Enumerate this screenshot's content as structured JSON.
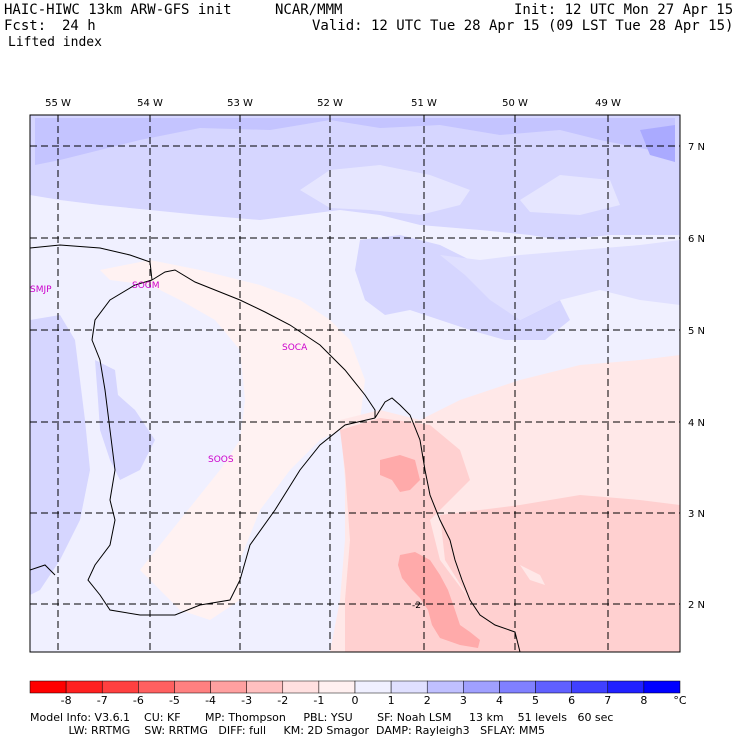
{
  "header": {
    "model": "HAIC-HIWC 13km ARW-GFS init",
    "org": "NCAR/MMM",
    "init": "Init: 12 UTC Mon 27 Apr 15",
    "fcst_label": "Fcst:",
    "fcst_value": "24 h",
    "valid": "Valid: 12 UTC Tue 28 Apr 15 (09 LST Tue 28 Apr 15)",
    "field": "Lifted index"
  },
  "map": {
    "lon_labels": [
      "55 W",
      "54 W",
      "53 W",
      "52 W",
      "51 W",
      "50 W",
      "49 W"
    ],
    "lat_labels": [
      "7 N",
      "6 N",
      "5 N",
      "4 N",
      "3 N",
      "2 N"
    ],
    "stations": [
      "SMJP",
      "SOGM",
      "SOCA",
      "SOOS"
    ],
    "contour_label": "-2"
  },
  "colorbar": {
    "ticks": [
      "-8",
      "-7",
      "-6",
      "-5",
      "-4",
      "-3",
      "-2",
      "-1",
      "0",
      "1",
      "2",
      "3",
      "4",
      "5",
      "6",
      "7",
      "8"
    ],
    "unit": "°C",
    "colors": [
      "#ff0000",
      "#ff2020",
      "#ff4040",
      "#ff6060",
      "#ff8080",
      "#ffa0a0",
      "#ffc0c0",
      "#ffe0e0",
      "#fff0f0",
      "#f0f0ff",
      "#e0e0ff",
      "#c0c0ff",
      "#a0a0ff",
      "#8080ff",
      "#6060ff",
      "#4040ff",
      "#2020ff",
      "#0000ff"
    ]
  },
  "footer": {
    "line1": "Model Info: V3.6.1    CU: KF       MP: Thompson     PBL: YSU       SF: Noah LSM     13 km    51 levels   60 sec",
    "line2": "           LW: RRTMG    SW: RRTMG   DIFF: full     KM: 2D Smagor  DAMP: Rayleigh3   SFLAY: MM5"
  }
}
